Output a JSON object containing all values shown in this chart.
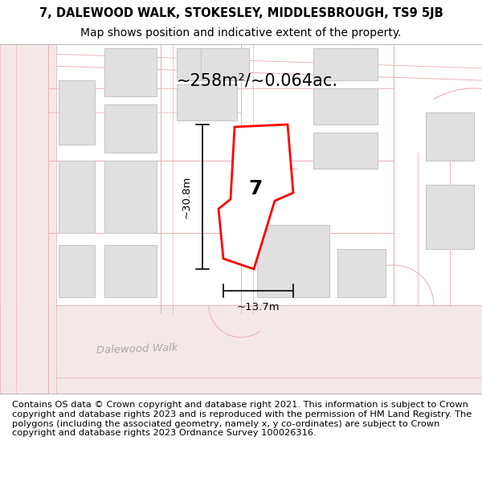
{
  "title_line1": "7, DALEWOOD WALK, STOKESLEY, MIDDLESBROUGH, TS9 5JB",
  "title_line2": "Map shows position and indicative extent of the property.",
  "footer_text": "Contains OS data © Crown copyright and database right 2021. This information is subject to Crown copyright and database rights 2023 and is reproduced with the permission of HM Land Registry. The polygons (including the associated geometry, namely x, y co-ordinates) are subject to Crown copyright and database rights 2023 Ordnance Survey 100026316.",
  "area_label": "~258m²/~0.064ac.",
  "width_label": "~13.7m",
  "height_label": "~30.8m",
  "plot_number": "7",
  "street_label": "Dalewood Walk",
  "title_fontsize": 10.5,
  "footer_fontsize": 8.2,
  "map_bg": "#ffffff",
  "road_stroke": "#e8b0b0",
  "road_fill": "#f5e8e8",
  "building_fill": "#e0e0e0",
  "building_stroke": "#c8c8c8",
  "plot_fill": "#ffffff",
  "plot_stroke": "#ff0000",
  "dim_color": "#222222"
}
